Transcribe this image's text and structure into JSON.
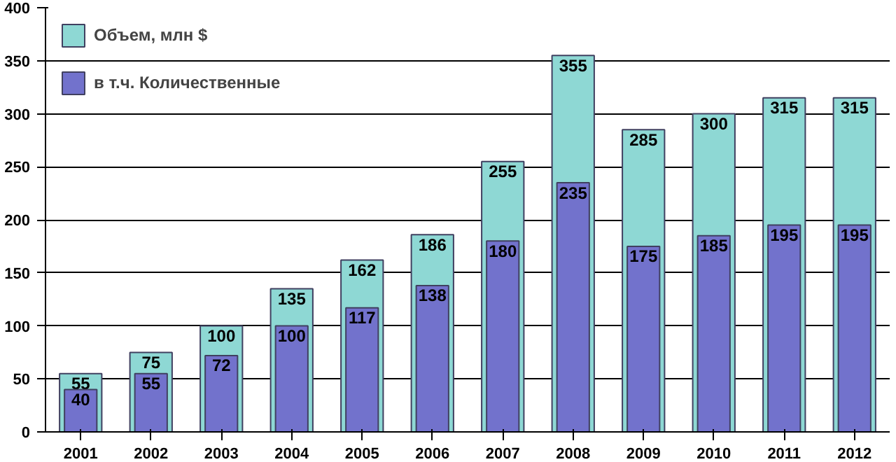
{
  "chart_data": {
    "type": "bar",
    "data_labels": true,
    "legend": "top left",
    "categories": [
      "2001",
      "2002",
      "2003",
      "2004",
      "2005",
      "2006",
      "2007",
      "2008",
      "2009",
      "2010",
      "2011",
      "2012"
    ],
    "series": [
      {
        "name": "Объем, млн $",
        "color": "#8ed8d4",
        "values": [
          55,
          75,
          100,
          135,
          162,
          186,
          255,
          355,
          285,
          300,
          315,
          315
        ]
      },
      {
        "name": "в т.ч. Количественные",
        "color": "#7272cc",
        "values": [
          40,
          55,
          72,
          100,
          117,
          138,
          180,
          235,
          175,
          185,
          195,
          195
        ]
      }
    ],
    "ylim": [
      0,
      400
    ],
    "yticks": [
      0,
      50,
      100,
      150,
      200,
      250,
      300,
      350,
      400
    ],
    "grid": "y"
  }
}
